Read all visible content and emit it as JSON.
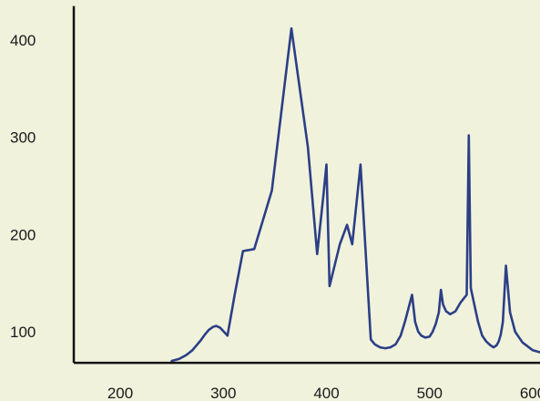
{
  "chart_data": {
    "type": "line",
    "title": "",
    "xlabel": "",
    "ylabel": "",
    "xlim": [
      155,
      625
    ],
    "ylim": [
      68,
      435
    ],
    "grid": false,
    "legend": "none",
    "x_ticks": [
      200,
      300,
      400,
      500,
      600
    ],
    "y_ticks": [
      100,
      200,
      300,
      400
    ],
    "colors": {
      "background": "#f1f2dc",
      "line": "#2b3f86",
      "axis": "#111111"
    },
    "series": [
      {
        "x": [
          250,
          257,
          264,
          270,
          274,
          278,
          282,
          286,
          290,
          293,
          297,
          304,
          311,
          319,
          330,
          347,
          366,
          382,
          391,
          397,
          400,
          403,
          413,
          420,
          425,
          433,
          443,
          447,
          452,
          457,
          462,
          467,
          472,
          476,
          480,
          483,
          486,
          489,
          492,
          496,
          500,
          503,
          506,
          509,
          511,
          513,
          516,
          520,
          525,
          530,
          536,
          538,
          540,
          543,
          547,
          551,
          555,
          559,
          562,
          565,
          567,
          569,
          571,
          574,
          578,
          583,
          590,
          600,
          610,
          620,
          626
        ],
        "values": [
          70,
          72,
          76,
          81,
          86,
          91,
          97,
          102,
          105,
          106,
          104,
          96,
          138,
          183,
          185,
          245,
          412,
          290,
          180,
          240,
          272,
          147,
          190,
          210,
          190,
          272,
          92,
          87,
          84,
          83,
          84,
          87,
          96,
          110,
          126,
          138,
          110,
          100,
          96,
          94,
          95,
          100,
          108,
          120,
          143,
          128,
          121,
          118,
          121,
          130,
          138,
          302,
          145,
          130,
          110,
          96,
          90,
          86,
          84,
          86,
          90,
          97,
          110,
          168,
          120,
          100,
          89,
          81,
          78,
          76,
          74
        ]
      }
    ]
  }
}
